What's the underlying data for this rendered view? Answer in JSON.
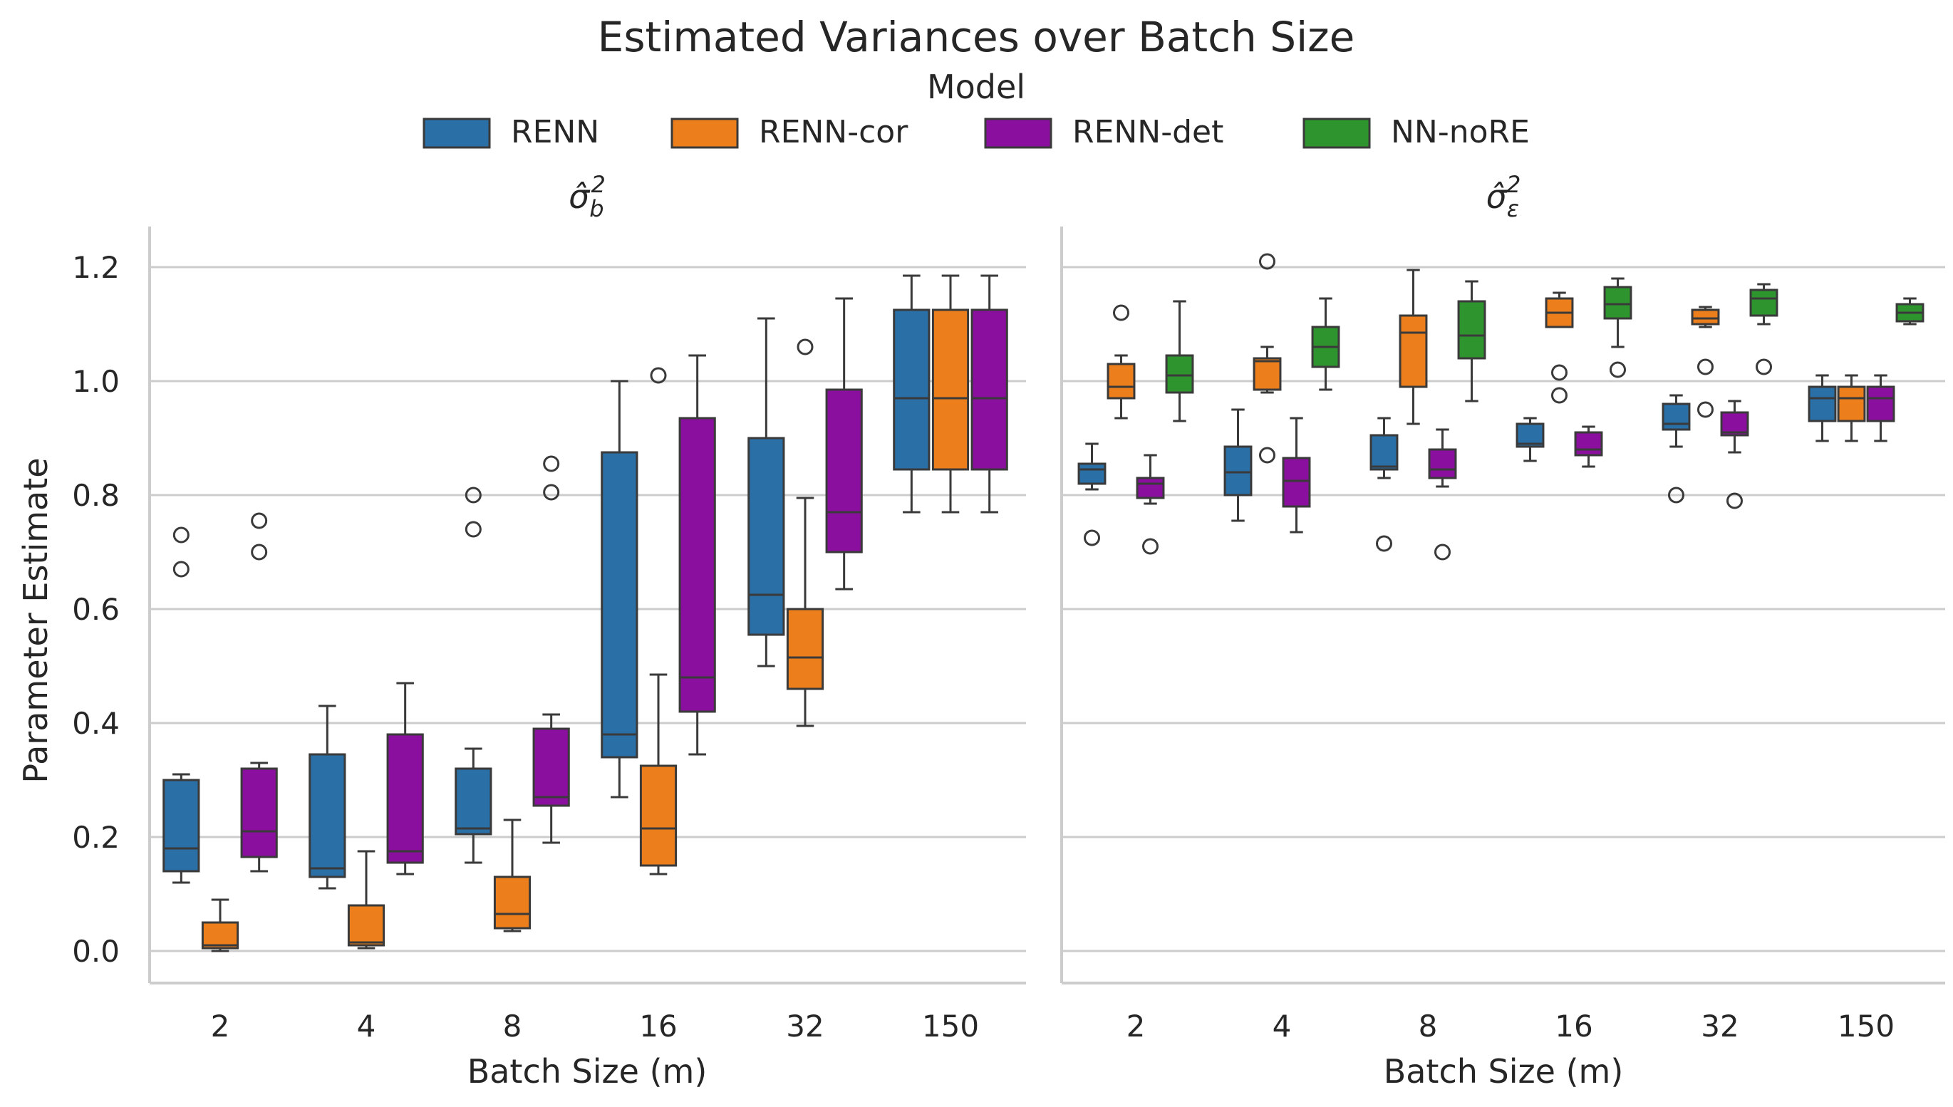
{
  "chart_data": {
    "type": "boxplot",
    "title": "Estimated Variances over Batch Size",
    "legend": {
      "title": "Model",
      "placement": "top-center",
      "entries": [
        {
          "name": "RENN",
          "color": "#2a6fa6"
        },
        {
          "name": "RENN-cor",
          "color": "#ec7e1c"
        },
        {
          "name": "RENN-det",
          "color": "#8b0f9e"
        },
        {
          "name": "NN-noRE",
          "color": "#2e952e"
        }
      ]
    },
    "ylabel": "Parameter Estimate",
    "ylim": [
      -0.06,
      1.28
    ],
    "yticks": [
      "0.0",
      "0.2",
      "0.4",
      "0.6",
      "0.8",
      "1.0",
      "1.2"
    ],
    "grid": "horizontal",
    "categories": [
      "2",
      "4",
      "8",
      "16",
      "32",
      "150"
    ],
    "panels": [
      {
        "title": "σ̂b²",
        "title_base": "σ̂",
        "title_sub": "b",
        "title_sup": "2",
        "xlabel": "Batch Size (m)",
        "series": [
          {
            "name": "RENN",
            "boxes": [
              {
                "lw": 0.12,
                "q1": 0.14,
                "med": 0.18,
                "q3": 0.3,
                "uw": 0.31,
                "out": [
                  0.67,
                  0.73
                ]
              },
              {
                "lw": 0.11,
                "q1": 0.13,
                "med": 0.145,
                "q3": 0.345,
                "uw": 0.43,
                "out": []
              },
              {
                "lw": 0.155,
                "q1": 0.205,
                "med": 0.215,
                "q3": 0.32,
                "uw": 0.355,
                "out": [
                  0.74,
                  0.8
                ]
              },
              {
                "lw": 0.27,
                "q1": 0.34,
                "med": 0.38,
                "q3": 0.875,
                "uw": 1.0,
                "out": []
              },
              {
                "lw": 0.5,
                "q1": 0.555,
                "med": 0.625,
                "q3": 0.9,
                "uw": 1.11,
                "out": []
              },
              {
                "lw": 0.77,
                "q1": 0.845,
                "med": 0.97,
                "q3": 1.125,
                "uw": 1.185,
                "out": []
              }
            ]
          },
          {
            "name": "RENN-cor",
            "boxes": [
              {
                "lw": 0.0,
                "q1": 0.005,
                "med": 0.01,
                "q3": 0.05,
                "uw": 0.09,
                "out": []
              },
              {
                "lw": 0.005,
                "q1": 0.01,
                "med": 0.015,
                "q3": 0.08,
                "uw": 0.175,
                "out": []
              },
              {
                "lw": 0.035,
                "q1": 0.04,
                "med": 0.065,
                "q3": 0.13,
                "uw": 0.23,
                "out": []
              },
              {
                "lw": 0.135,
                "q1": 0.15,
                "med": 0.215,
                "q3": 0.325,
                "uw": 0.485,
                "out": [
                  1.01
                ]
              },
              {
                "lw": 0.395,
                "q1": 0.46,
                "med": 0.515,
                "q3": 0.6,
                "uw": 0.795,
                "out": [
                  1.06
                ]
              },
              {
                "lw": 0.77,
                "q1": 0.845,
                "med": 0.97,
                "q3": 1.125,
                "uw": 1.185,
                "out": []
              }
            ]
          },
          {
            "name": "RENN-det",
            "boxes": [
              {
                "lw": 0.14,
                "q1": 0.165,
                "med": 0.21,
                "q3": 0.32,
                "uw": 0.33,
                "out": [
                  0.7,
                  0.755
                ]
              },
              {
                "lw": 0.135,
                "q1": 0.155,
                "med": 0.175,
                "q3": 0.38,
                "uw": 0.47,
                "out": []
              },
              {
                "lw": 0.19,
                "q1": 0.255,
                "med": 0.27,
                "q3": 0.39,
                "uw": 0.415,
                "out": [
                  0.805,
                  0.855
                ]
              },
              {
                "lw": 0.345,
                "q1": 0.42,
                "med": 0.48,
                "q3": 0.935,
                "uw": 1.045,
                "out": []
              },
              {
                "lw": 0.635,
                "q1": 0.7,
                "med": 0.77,
                "q3": 0.985,
                "uw": 1.145,
                "out": []
              },
              {
                "lw": 0.77,
                "q1": 0.845,
                "med": 0.97,
                "q3": 1.125,
                "uw": 1.185,
                "out": []
              }
            ]
          }
        ]
      },
      {
        "title": "σ̂ε²",
        "title_base": "σ̂",
        "title_sub": "ε",
        "title_sup": "2",
        "xlabel": "Batch Size (m)",
        "series": [
          {
            "name": "RENN",
            "boxes": [
              {
                "lw": 0.81,
                "q1": 0.82,
                "med": 0.845,
                "q3": 0.855,
                "uw": 0.89,
                "out": [
                  0.725
                ]
              },
              {
                "lw": 0.755,
                "q1": 0.8,
                "med": 0.84,
                "q3": 0.885,
                "uw": 0.95,
                "out": []
              },
              {
                "lw": 0.83,
                "q1": 0.845,
                "med": 0.85,
                "q3": 0.905,
                "uw": 0.935,
                "out": [
                  0.715
                ]
              },
              {
                "lw": 0.86,
                "q1": 0.885,
                "med": 0.89,
                "q3": 0.925,
                "uw": 0.935,
                "out": []
              },
              {
                "lw": 0.885,
                "q1": 0.915,
                "med": 0.925,
                "q3": 0.96,
                "uw": 0.975,
                "out": [
                  0.8
                ]
              },
              {
                "lw": 0.895,
                "q1": 0.93,
                "med": 0.97,
                "q3": 0.99,
                "uw": 1.01,
                "out": []
              }
            ]
          },
          {
            "name": "RENN-cor",
            "boxes": [
              {
                "lw": 0.935,
                "q1": 0.97,
                "med": 0.99,
                "q3": 1.03,
                "uw": 1.045,
                "out": [
                  1.12
                ]
              },
              {
                "lw": 0.98,
                "q1": 0.985,
                "med": 1.035,
                "q3": 1.04,
                "uw": 1.06,
                "out": [
                  0.87,
                  1.21
                ]
              },
              {
                "lw": 0.925,
                "q1": 0.99,
                "med": 1.085,
                "q3": 1.115,
                "uw": 1.195,
                "out": []
              },
              {
                "lw": 1.095,
                "q1": 1.095,
                "med": 1.12,
                "q3": 1.145,
                "uw": 1.155,
                "out": [
                  0.975,
                  1.015
                ]
              },
              {
                "lw": 1.095,
                "q1": 1.1,
                "med": 1.11,
                "q3": 1.125,
                "uw": 1.13,
                "out": [
                  0.95,
                  1.025
                ]
              },
              {
                "lw": 0.895,
                "q1": 0.93,
                "med": 0.97,
                "q3": 0.99,
                "uw": 1.01,
                "out": []
              }
            ]
          },
          {
            "name": "RENN-det",
            "boxes": [
              {
                "lw": 0.785,
                "q1": 0.795,
                "med": 0.82,
                "q3": 0.83,
                "uw": 0.87,
                "out": [
                  0.71
                ]
              },
              {
                "lw": 0.735,
                "q1": 0.78,
                "med": 0.825,
                "q3": 0.865,
                "uw": 0.935,
                "out": []
              },
              {
                "lw": 0.815,
                "q1": 0.83,
                "med": 0.845,
                "q3": 0.88,
                "uw": 0.915,
                "out": [
                  0.7
                ]
              },
              {
                "lw": 0.85,
                "q1": 0.87,
                "med": 0.88,
                "q3": 0.91,
                "uw": 0.92,
                "out": []
              },
              {
                "lw": 0.875,
                "q1": 0.905,
                "med": 0.91,
                "q3": 0.945,
                "uw": 0.965,
                "out": [
                  0.79
                ]
              },
              {
                "lw": 0.895,
                "q1": 0.93,
                "med": 0.97,
                "q3": 0.99,
                "uw": 1.01,
                "out": []
              }
            ]
          },
          {
            "name": "NN-noRE",
            "boxes": [
              {
                "lw": 0.93,
                "q1": 0.98,
                "med": 1.01,
                "q3": 1.045,
                "uw": 1.14,
                "out": []
              },
              {
                "lw": 0.985,
                "q1": 1.025,
                "med": 1.06,
                "q3": 1.095,
                "uw": 1.145,
                "out": []
              },
              {
                "lw": 0.965,
                "q1": 1.04,
                "med": 1.08,
                "q3": 1.14,
                "uw": 1.175,
                "out": []
              },
              {
                "lw": 1.06,
                "q1": 1.11,
                "med": 1.135,
                "q3": 1.165,
                "uw": 1.18,
                "out": [
                  1.02
                ]
              },
              {
                "lw": 1.1,
                "q1": 1.115,
                "med": 1.145,
                "q3": 1.16,
                "uw": 1.17,
                "out": [
                  1.025
                ]
              },
              {
                "lw": 1.1,
                "q1": 1.105,
                "med": 1.12,
                "q3": 1.135,
                "uw": 1.145,
                "out": []
              }
            ]
          }
        ]
      }
    ]
  }
}
